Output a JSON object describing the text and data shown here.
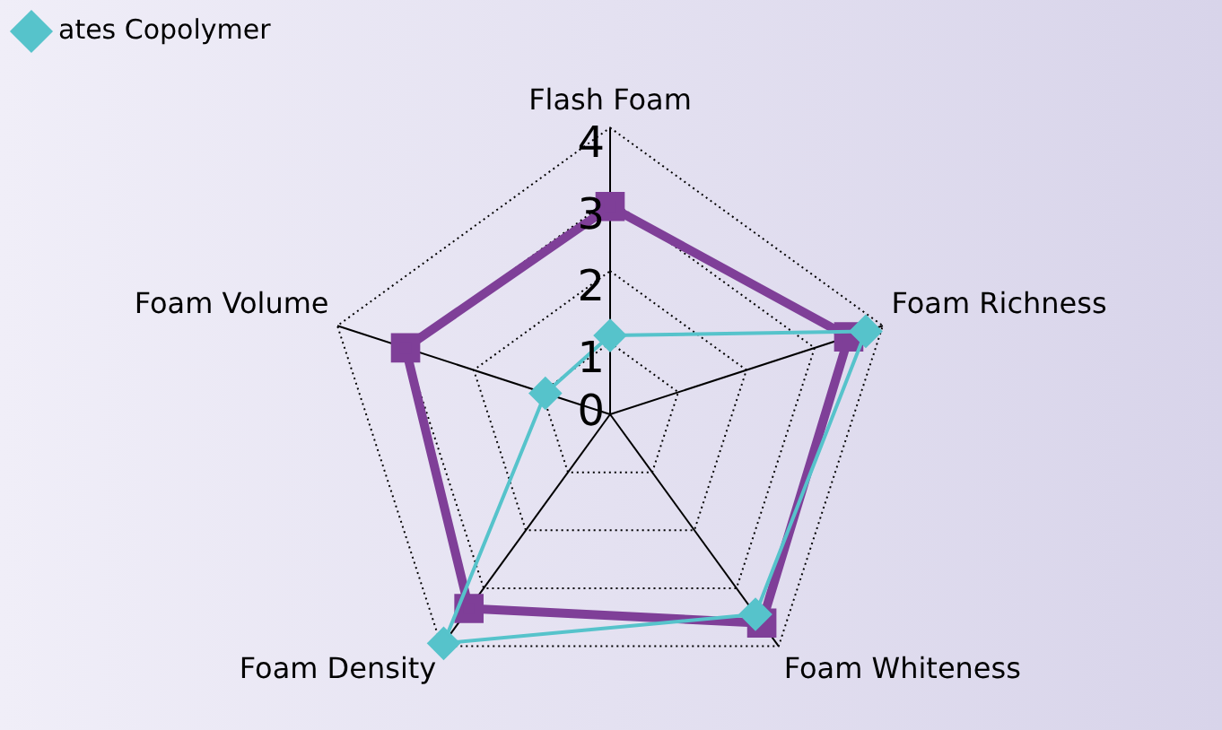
{
  "chart_data": {
    "type": "radar",
    "categories": [
      "Flash Foam",
      "Foam Richness",
      "Foam Whiteness",
      "Foam Density",
      "Foam Volume"
    ],
    "series": [
      {
        "color": "#7f3f98",
        "values": [
          2.9,
          3.5,
          3.6,
          3.35,
          3.0
        ],
        "marker": "square"
      },
      {
        "name": "ates Copolymer",
        "color": "#56c3cb",
        "values": [
          1.1,
          3.75,
          3.45,
          3.95,
          0.95
        ],
        "marker": "diamond"
      }
    ],
    "ylim": [
      0,
      4
    ],
    "yticks": [
      0,
      1,
      2,
      3,
      4
    ],
    "grid": true,
    "legend": "top left"
  }
}
